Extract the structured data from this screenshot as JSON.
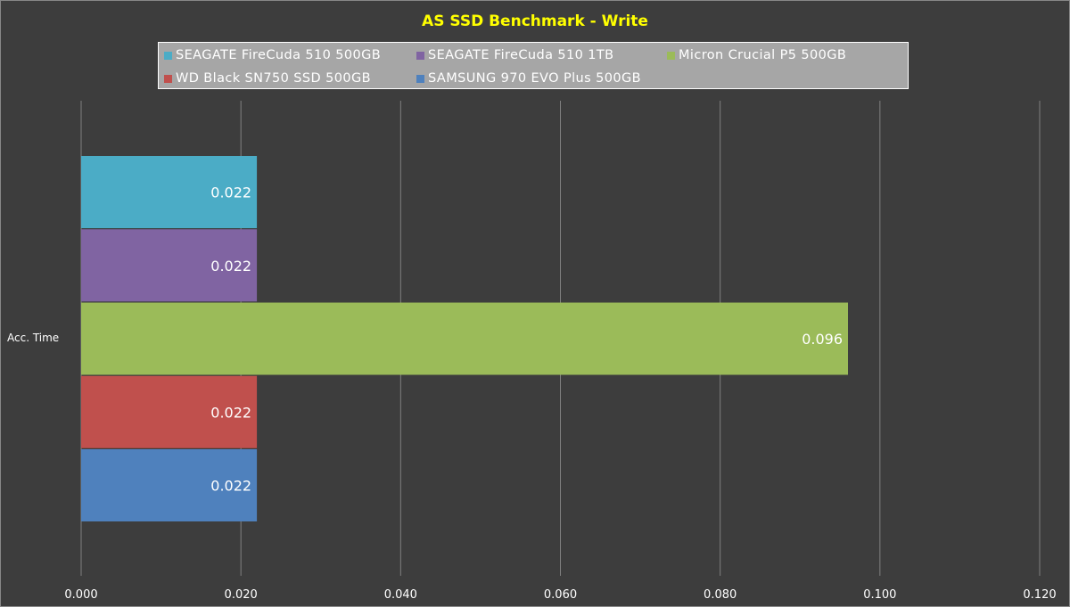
{
  "chart_data": {
    "type": "bar",
    "orientation": "horizontal",
    "title": "AS SSD Benchmark - Write",
    "categories": [
      "Acc. Time"
    ],
    "series": [
      {
        "name": "SEAGATE FireCuda 510 500GB",
        "values": [
          0.022
        ],
        "color": "#4bacc6"
      },
      {
        "name": "SEAGATE FireCuda 510 1TB",
        "values": [
          0.022
        ],
        "color": "#8064a2"
      },
      {
        "name": "Micron Crucial P5 500GB",
        "values": [
          0.096
        ],
        "color": "#9bbb59"
      },
      {
        "name": "WD Black SN750 SSD 500GB",
        "values": [
          0.022
        ],
        "color": "#c0504d"
      },
      {
        "name": "SAMSUNG 970 EVO Plus 500GB",
        "values": [
          0.022
        ],
        "color": "#4f81bd"
      }
    ],
    "data_labels": [
      "0.022",
      "0.022",
      "0.096",
      "0.022",
      "0.022"
    ],
    "xlim": [
      0,
      0.12
    ],
    "x_ticks": [
      "0.000",
      "0.020",
      "0.040",
      "0.060",
      "0.080",
      "0.100",
      "0.120"
    ],
    "grid": true,
    "legend_position": "top"
  },
  "colors": {
    "background": "#3d3d3d",
    "title": "#ffff00",
    "legend_background": "#a6a6a6",
    "gridline": "#808080"
  }
}
